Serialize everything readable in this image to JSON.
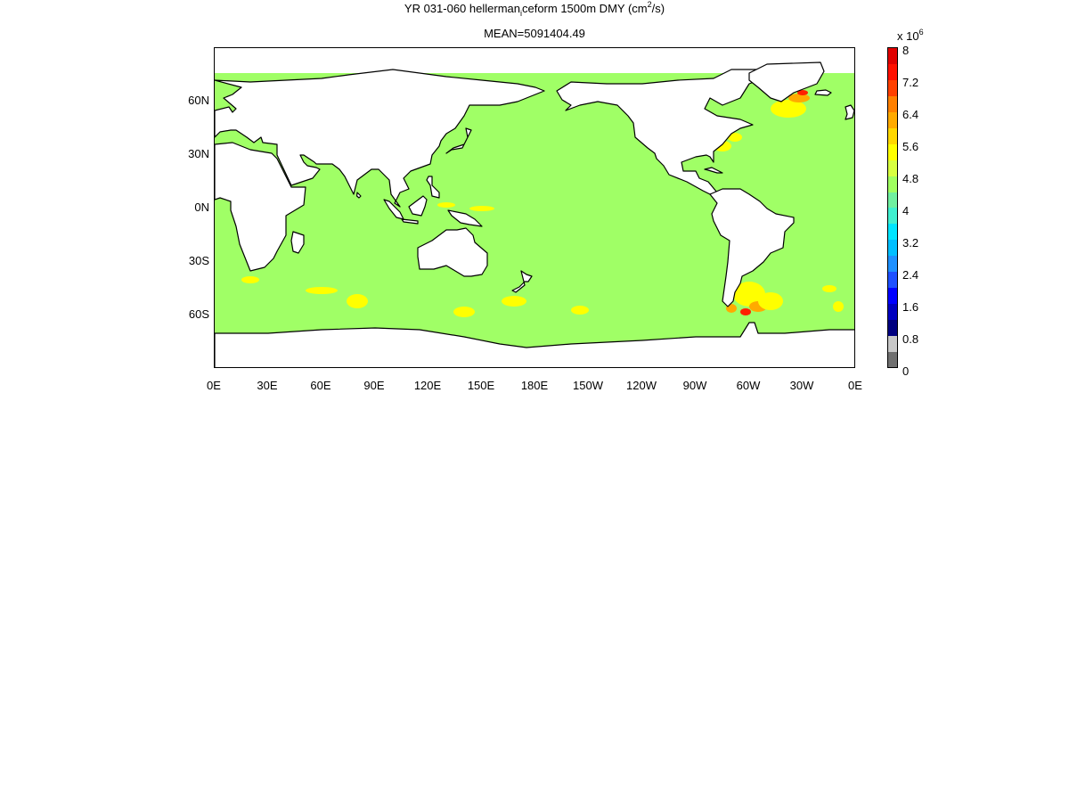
{
  "chart_data": {
    "type": "heatmap",
    "title": {
      "part1": "YR 031-060 hellerman",
      "sub_char": "i",
      "part2": "ceform 1500m DMY (cm",
      "sup_char": "2",
      "part3": "/s)"
    },
    "subtitle": "MEAN=5091404.49",
    "x_tick_labels": [
      "0E",
      "30E",
      "60E",
      "90E",
      "120E",
      "150E",
      "180E",
      "150W",
      "120W",
      "90W",
      "60W",
      "30W",
      "0E"
    ],
    "y_tick_labels": [
      "60N",
      "30N",
      "0N",
      "30S",
      "60S"
    ],
    "colorbar": {
      "multiplier_base": "x 10",
      "multiplier_exponent": "6",
      "range": [
        0,
        8
      ],
      "tick_labels": [
        "8",
        "7.2",
        "6.4",
        "5.6",
        "4.8",
        "4",
        "3.2",
        "2.4",
        "1.6",
        "0.8",
        "0"
      ],
      "colors": [
        "#707070",
        "#c8c8c8",
        "#000080",
        "#0000c0",
        "#0000ff",
        "#1e50ff",
        "#1e90ff",
        "#00bfff",
        "#00e5ff",
        "#40f0d0",
        "#70f0a0",
        "#a0ff60",
        "#d8ff40",
        "#ffff00",
        "#ffd700",
        "#ffaa00",
        "#ff8000",
        "#ff4000",
        "#ff1000",
        "#e00000"
      ]
    },
    "ocean_color": "#a0ff66",
    "hotspot_color_yellow": "#ffff00",
    "hotspot_color_orange": "#ffaa00",
    "hotspot_color_red": "#ff2000",
    "mean_value": 5091404.49
  }
}
